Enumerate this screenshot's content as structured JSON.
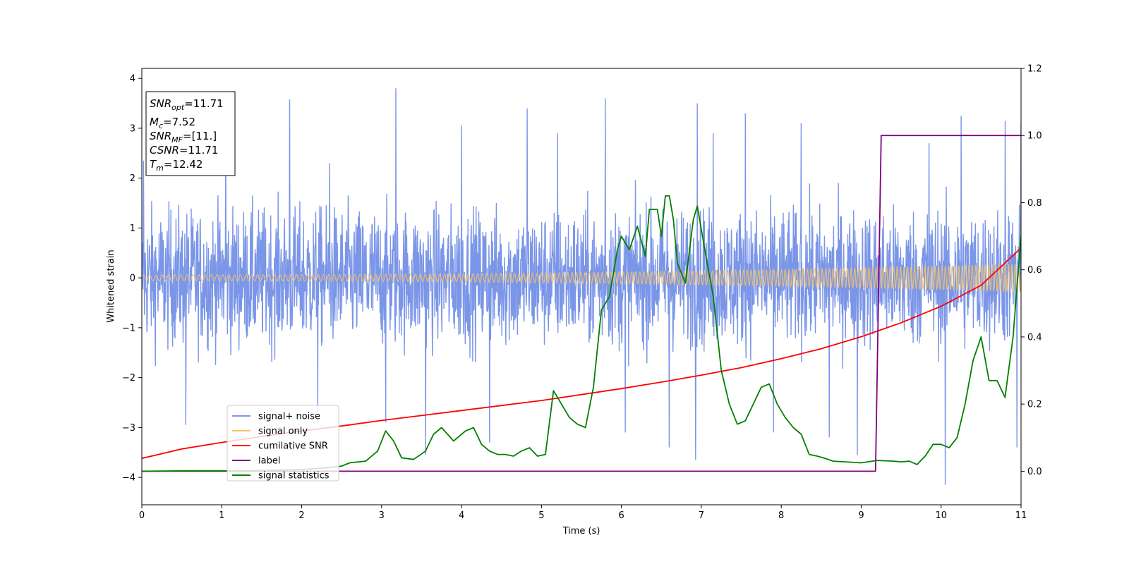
{
  "chart_data": {
    "type": "line",
    "xlabel": "Time (s)",
    "ylabel": "Whitened strain",
    "xlim": [
      0,
      11
    ],
    "ylim": [
      -4.55,
      4.2
    ],
    "y2lim": [
      -0.1,
      1.2
    ],
    "x_ticks": [
      0,
      1,
      2,
      3,
      4,
      5,
      6,
      7,
      8,
      9,
      10,
      11
    ],
    "y_ticks": [
      -4,
      -3,
      -2,
      -1,
      0,
      1,
      2,
      3,
      4
    ],
    "y2_ticks": [
      0.0,
      0.2,
      0.4,
      0.6,
      0.8,
      1.0,
      1.2
    ],
    "grid": false,
    "legend_position": "lower-left",
    "annotation": {
      "snr_opt_sym": "SNR",
      "snr_opt_sub": "opt",
      "snr_opt_val": "=11.71",
      "mc_sym": "M",
      "mc_sub": "c",
      "mc_val": "=7.52",
      "snr_mf_sym": "SNR",
      "snr_mf_sub": "MF",
      "snr_mf_val": "=[11.]",
      "csnr_sym": "CSNR",
      "csnr_val": "=11.71",
      "tm_sym": "T",
      "tm_sub": "m",
      "tm_val": "=12.42"
    },
    "series": [
      {
        "name": "signal+ noise",
        "color": "#7b96e8",
        "axis": "left",
        "kind": "noise",
        "noise_spread": 1.1,
        "peaks": [
          {
            "x": 0.02,
            "y": 2.35
          },
          {
            "x": 0.55,
            "y": -2.95
          },
          {
            "x": 1.05,
            "y": 3.0
          },
          {
            "x": 1.85,
            "y": 3.58
          },
          {
            "x": 2.2,
            "y": -2.7
          },
          {
            "x": 2.35,
            "y": 2.3
          },
          {
            "x": 3.18,
            "y": 3.8
          },
          {
            "x": 3.05,
            "y": -2.9
          },
          {
            "x": 3.55,
            "y": -3.55
          },
          {
            "x": 4.0,
            "y": 3.05
          },
          {
            "x": 4.35,
            "y": -3.3
          },
          {
            "x": 4.82,
            "y": 3.4
          },
          {
            "x": 5.2,
            "y": 2.9
          },
          {
            "x": 5.8,
            "y": 3.6
          },
          {
            "x": 6.05,
            "y": -3.1
          },
          {
            "x": 6.6,
            "y": -3.4
          },
          {
            "x": 6.95,
            "y": 3.5
          },
          {
            "x": 6.93,
            "y": -3.65
          },
          {
            "x": 7.15,
            "y": 2.9
          },
          {
            "x": 7.55,
            "y": 3.3
          },
          {
            "x": 7.9,
            "y": -3.1
          },
          {
            "x": 8.25,
            "y": 3.1
          },
          {
            "x": 8.6,
            "y": -3.2
          },
          {
            "x": 8.95,
            "y": -3.55
          },
          {
            "x": 9.85,
            "y": 2.7
          },
          {
            "x": 10.05,
            "y": -4.15
          },
          {
            "x": 10.25,
            "y": 3.25
          },
          {
            "x": 10.8,
            "y": 3.15
          },
          {
            "x": 10.95,
            "y": -3.4
          },
          {
            "x": 11.0,
            "y": 3.1
          }
        ]
      },
      {
        "name": "signal only",
        "color": "#f5c36a",
        "axis": "left",
        "kind": "chirp",
        "amplitude_start": 0.06,
        "amplitude_end": 0.28
      },
      {
        "name": "cumilative SNR",
        "color": "#ff0000",
        "axis": "left",
        "kind": "line",
        "x": [
          0,
          0.5,
          1,
          1.5,
          2,
          2.5,
          3,
          3.5,
          4,
          4.5,
          5,
          5.5,
          6,
          6.5,
          7,
          7.5,
          8,
          8.5,
          9,
          9.5,
          10,
          10.5,
          11
        ],
        "y": [
          -3.62,
          -3.43,
          -3.3,
          -3.18,
          -3.07,
          -2.97,
          -2.86,
          -2.76,
          -2.66,
          -2.56,
          -2.46,
          -2.34,
          -2.22,
          -2.09,
          -1.95,
          -1.8,
          -1.62,
          -1.42,
          -1.18,
          -0.9,
          -0.57,
          -0.15,
          0.6
        ]
      },
      {
        "name": "label",
        "color": "#800080",
        "axis": "right",
        "kind": "line",
        "x": [
          0,
          9.18,
          9.25,
          11
        ],
        "y": [
          0.0,
          0.0,
          1.0,
          1.0
        ]
      },
      {
        "name": "signal statistics",
        "color": "#008000",
        "axis": "right",
        "kind": "line",
        "x": [
          0,
          0.5,
          1,
          1.5,
          2,
          2.3,
          2.5,
          2.6,
          2.8,
          2.95,
          3.05,
          3.15,
          3.25,
          3.4,
          3.55,
          3.65,
          3.75,
          3.9,
          4.05,
          4.15,
          4.25,
          4.35,
          4.45,
          4.55,
          4.65,
          4.75,
          4.85,
          4.95,
          5.05,
          5.15,
          5.25,
          5.35,
          5.45,
          5.55,
          5.65,
          5.75,
          5.85,
          5.95,
          6.0,
          6.1,
          6.2,
          6.3,
          6.35,
          6.45,
          6.5,
          6.55,
          6.6,
          6.65,
          6.7,
          6.8,
          6.9,
          6.95,
          7.05,
          7.15,
          7.25,
          7.35,
          7.45,
          7.55,
          7.65,
          7.75,
          7.85,
          7.95,
          8.05,
          8.15,
          8.25,
          8.35,
          8.45,
          8.55,
          8.65,
          8.8,
          9.0,
          9.2,
          9.4,
          9.5,
          9.6,
          9.7,
          9.8,
          9.9,
          10.0,
          10.1,
          10.2,
          10.3,
          10.4,
          10.5,
          10.6,
          10.7,
          10.8,
          10.9,
          11.0
        ],
        "y": [
          0.0,
          0.001,
          0.001,
          0.002,
          0.005,
          0.01,
          0.015,
          0.025,
          0.03,
          0.06,
          0.12,
          0.09,
          0.04,
          0.035,
          0.06,
          0.11,
          0.13,
          0.09,
          0.12,
          0.13,
          0.08,
          0.06,
          0.05,
          0.05,
          0.045,
          0.06,
          0.07,
          0.045,
          0.05,
          0.24,
          0.2,
          0.16,
          0.14,
          0.13,
          0.25,
          0.48,
          0.52,
          0.66,
          0.7,
          0.66,
          0.73,
          0.64,
          0.78,
          0.78,
          0.7,
          0.82,
          0.82,
          0.75,
          0.62,
          0.56,
          0.75,
          0.79,
          0.65,
          0.52,
          0.3,
          0.2,
          0.14,
          0.15,
          0.2,
          0.25,
          0.26,
          0.2,
          0.16,
          0.13,
          0.11,
          0.05,
          0.045,
          0.038,
          0.03,
          0.028,
          0.025,
          0.032,
          0.03,
          0.028,
          0.03,
          0.02,
          0.045,
          0.08,
          0.08,
          0.07,
          0.1,
          0.2,
          0.33,
          0.4,
          0.27,
          0.27,
          0.22,
          0.4,
          0.7
        ]
      }
    ]
  }
}
